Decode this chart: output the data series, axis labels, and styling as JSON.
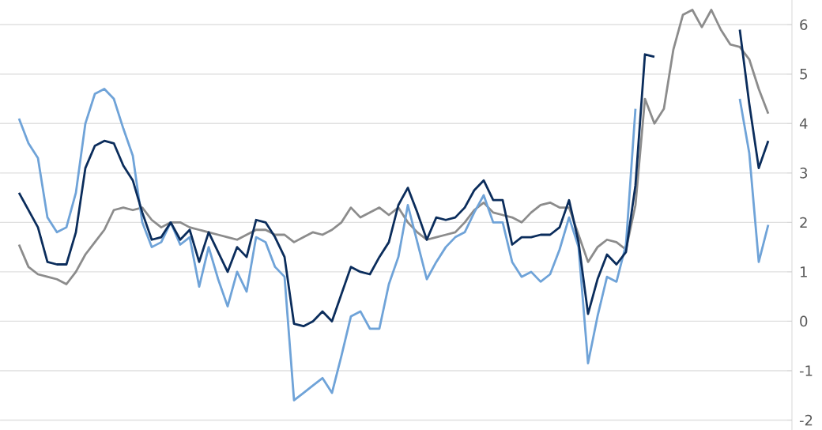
{
  "chart_data": {
    "type": "line",
    "categories": [
      null,
      null,
      null,
      null,
      null,
      null,
      null,
      null,
      null,
      null,
      null,
      null,
      null,
      null,
      null,
      null,
      null,
      null,
      null,
      null,
      null,
      null,
      null,
      null,
      null,
      null,
      null,
      null,
      null,
      null,
      null,
      null,
      null,
      null,
      null,
      null,
      null,
      null,
      null,
      null,
      null,
      null,
      null,
      null,
      null,
      null,
      null,
      null,
      null,
      null,
      null,
      null,
      null,
      null,
      null,
      null,
      null,
      null,
      null,
      null,
      null,
      null,
      null,
      null,
      null,
      null,
      null,
      null,
      null,
      null,
      null,
      null,
      null,
      null,
      null,
      null,
      null,
      null,
      null,
      null
    ],
    "series": [
      {
        "color": "#8c8c8c",
        "values": [
          1.55,
          1.1,
          0.95,
          0.9,
          0.85,
          0.75,
          1.0,
          1.35,
          1.6,
          1.85,
          2.25,
          2.3,
          2.25,
          2.3,
          2.05,
          1.9,
          2.0,
          2.0,
          1.9,
          1.85,
          1.8,
          1.75,
          1.7,
          1.65,
          1.75,
          1.85,
          1.85,
          1.75,
          1.75,
          1.6,
          1.7,
          1.8,
          1.75,
          1.85,
          2.0,
          2.3,
          2.1,
          2.2,
          2.3,
          2.15,
          2.3,
          2.0,
          1.8,
          1.65,
          1.7,
          1.75,
          1.8,
          2.0,
          2.25,
          2.4,
          2.2,
          2.15,
          2.1,
          2.0,
          2.2,
          2.35,
          2.4,
          2.3,
          2.3,
          1.75,
          1.2,
          1.5,
          1.65,
          1.6,
          1.45,
          2.35,
          4.5,
          4.0,
          4.3,
          5.5,
          6.2,
          6.3,
          5.95,
          6.3,
          5.9,
          5.6,
          5.55,
          5.3,
          4.7,
          4.2
        ]
      },
      {
        "color": "#6fa3d8",
        "values": [
          4.1,
          3.6,
          3.3,
          2.1,
          1.8,
          1.9,
          2.6,
          4.0,
          4.6,
          4.7,
          4.5,
          3.9,
          3.35,
          2.0,
          1.5,
          1.6,
          2.0,
          1.55,
          1.7,
          0.7,
          1.5,
          0.85,
          0.3,
          1.0,
          0.6,
          1.7,
          1.6,
          1.1,
          0.9,
          -1.6,
          -1.45,
          -1.3,
          -1.15,
          -1.45,
          -0.7,
          0.1,
          0.2,
          -0.15,
          -0.15,
          0.75,
          1.3,
          2.35,
          1.6,
          0.85,
          1.2,
          1.5,
          1.7,
          1.8,
          2.2,
          2.55,
          2.0,
          2.0,
          1.2,
          0.9,
          1.0,
          0.8,
          0.95,
          1.45,
          2.1,
          1.5,
          -0.85,
          0.1,
          0.9,
          0.8,
          1.55,
          4.3,
          null,
          null,
          null,
          null,
          null,
          null,
          null,
          null,
          null,
          null,
          4.5,
          3.4,
          1.2,
          1.95
        ]
      },
      {
        "color": "#0b2d5c",
        "values": [
          2.6,
          2.25,
          1.9,
          1.2,
          1.15,
          1.15,
          1.8,
          3.1,
          3.55,
          3.65,
          3.6,
          3.15,
          2.85,
          2.2,
          1.65,
          1.7,
          2.0,
          1.65,
          1.85,
          1.2,
          1.8,
          1.4,
          1.0,
          1.5,
          1.3,
          2.05,
          2.0,
          1.7,
          1.3,
          -0.05,
          -0.1,
          0.0,
          0.2,
          0.0,
          0.55,
          1.1,
          1.0,
          0.95,
          1.3,
          1.6,
          2.35,
          2.7,
          2.2,
          1.65,
          2.1,
          2.05,
          2.1,
          2.3,
          2.65,
          2.85,
          2.45,
          2.45,
          1.55,
          1.7,
          1.7,
          1.75,
          1.75,
          1.9,
          2.45,
          1.6,
          0.15,
          0.85,
          1.35,
          1.15,
          1.4,
          2.75,
          5.4,
          5.35,
          null,
          null,
          null,
          null,
          null,
          null,
          null,
          null,
          5.9,
          4.4,
          3.1,
          3.65
        ]
      }
    ],
    "ylim": [
      -2.2,
      6.5
    ],
    "yticks": [
      -2,
      -1,
      0,
      1,
      2,
      3,
      4,
      5,
      6
    ],
    "grid": "y",
    "tick_labels": "y"
  }
}
